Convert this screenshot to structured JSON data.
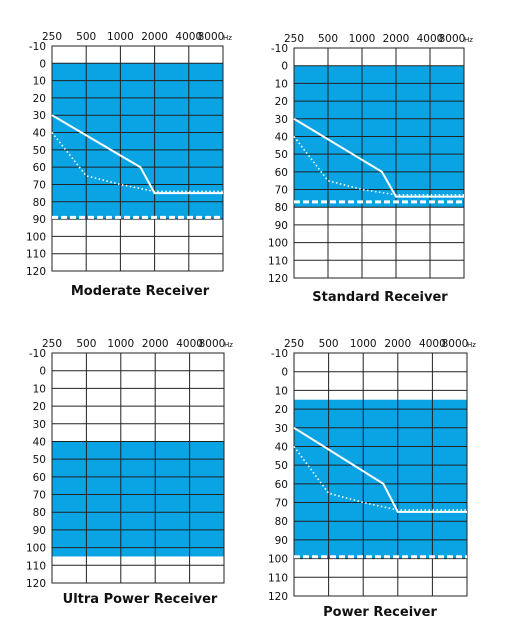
{
  "chart_data": [
    {
      "type": "area",
      "title": "Moderate Receiver",
      "x_ticks": [
        "250",
        "500",
        "1000",
        "2000",
        "4000",
        "8000"
      ],
      "x_unit": "Hz",
      "y_ticks": [
        "-10",
        "0",
        "10",
        "20",
        "30",
        "40",
        "50",
        "60",
        "70",
        "80",
        "90",
        "100",
        "110",
        "120"
      ],
      "ylim": [
        -10,
        120
      ],
      "y_inverted": true,
      "fill_range": [
        0,
        90
      ],
      "fill_color": "#0aa4e4",
      "solid_line": {
        "x": [
          250,
          1500,
          2000,
          8000
        ],
        "y": [
          30,
          60,
          75,
          75
        ]
      },
      "dotted_line": {
        "x": [
          250,
          500,
          1000,
          2000,
          8000
        ],
        "y": [
          40,
          65,
          70,
          74,
          74
        ]
      },
      "dashed_line_y": 89
    },
    {
      "type": "area",
      "title": "Standard Receiver",
      "x_ticks": [
        "250",
        "500",
        "1000",
        "2000",
        "4000",
        "8000"
      ],
      "x_unit": "Hz",
      "y_ticks": [
        "-10",
        "0",
        "10",
        "20",
        "30",
        "40",
        "50",
        "60",
        "70",
        "80",
        "90",
        "100",
        "110",
        "120"
      ],
      "ylim": [
        -10,
        120
      ],
      "y_inverted": true,
      "fill_range": [
        0,
        80
      ],
      "fill_color": "#0aa4e4",
      "solid_line": {
        "x": [
          250,
          1500,
          2000,
          8000
        ],
        "y": [
          30,
          60,
          74,
          74
        ]
      },
      "dotted_line": {
        "x": [
          250,
          500,
          1000,
          2000,
          8000
        ],
        "y": [
          40,
          65,
          70,
          73,
          73
        ]
      },
      "dashed_line_y": 77
    },
    {
      "type": "area",
      "title": "Ultra Power Receiver",
      "x_ticks": [
        "250",
        "500",
        "1000",
        "2000",
        "4000",
        "8000"
      ],
      "x_unit": "Hz",
      "y_ticks": [
        "-10",
        "0",
        "10",
        "20",
        "30",
        "40",
        "50",
        "60",
        "70",
        "80",
        "90",
        "100",
        "110",
        "120"
      ],
      "ylim": [
        -10,
        120
      ],
      "y_inverted": true,
      "fill_range": [
        40,
        105
      ],
      "fill_color": "#0aa4e4"
    },
    {
      "type": "area",
      "title": "Power Receiver",
      "x_ticks": [
        "250",
        "500",
        "1000",
        "2000",
        "4000",
        "8000"
      ],
      "x_unit": "Hz",
      "y_ticks": [
        "-10",
        "0",
        "10",
        "20",
        "30",
        "40",
        "50",
        "60",
        "70",
        "80",
        "90",
        "100",
        "110",
        "120"
      ],
      "ylim": [
        -10,
        120
      ],
      "y_inverted": true,
      "fill_range": [
        15,
        100
      ],
      "fill_color": "#0aa4e4",
      "solid_line": {
        "x": [
          250,
          1500,
          2000,
          8000
        ],
        "y": [
          30,
          60,
          75,
          75
        ]
      },
      "dotted_line": {
        "x": [
          250,
          500,
          1000,
          2000,
          8000
        ],
        "y": [
          40,
          65,
          70,
          74,
          74
        ]
      },
      "dashed_line_y": 99
    }
  ]
}
